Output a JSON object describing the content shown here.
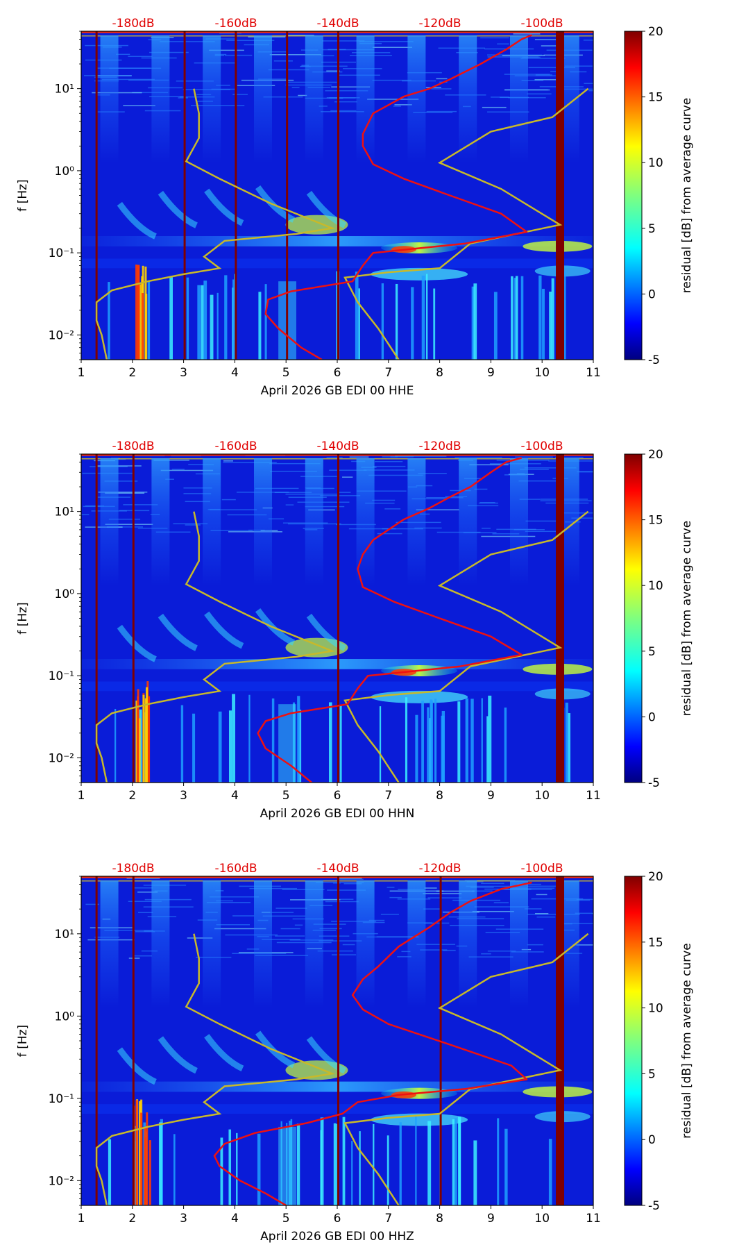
{
  "chart_data": [
    {
      "type": "heatmap",
      "component": "HHE",
      "xlabel": "April 2026 GB EDI 00 HHE",
      "ylabel": "f [Hz]",
      "xlim": [
        1,
        11
      ],
      "ylim": [
        0.005,
        50
      ],
      "yscale": "log",
      "x_ticks": [
        1,
        2,
        3,
        4,
        5,
        6,
        7,
        8,
        9,
        10,
        11
      ],
      "y_ticks": [
        {
          "value": 0.01,
          "label": "10⁻²"
        },
        {
          "value": 0.1,
          "label": "10⁻¹"
        },
        {
          "value": 1,
          "label": "10⁰"
        },
        {
          "value": 10,
          "label": "10¹"
        }
      ],
      "top_db_labels": [
        "-180dB",
        "-160dB",
        "-140dB",
        "-120dB",
        "-100dB"
      ],
      "colorbar": {
        "label": "residual [dB] from average curve",
        "range": [
          -5,
          20
        ],
        "ticks": [
          -5,
          0,
          5,
          10,
          15,
          20
        ]
      },
      "gap_days": [
        1.3,
        3.02,
        4.02,
        5.02,
        6.02,
        10.35
      ],
      "red_curve": [
        [
          5.7,
          0.005
        ],
        [
          5.3,
          0.007
        ],
        [
          4.85,
          0.012
        ],
        [
          4.6,
          0.018
        ],
        [
          4.65,
          0.027
        ],
        [
          5.1,
          0.034
        ],
        [
          6.3,
          0.045
        ],
        [
          6.5,
          0.07
        ],
        [
          6.7,
          0.1
        ],
        [
          8.5,
          0.13
        ],
        [
          9.7,
          0.18
        ],
        [
          9.2,
          0.3
        ],
        [
          8.2,
          0.5
        ],
        [
          7.3,
          0.8
        ],
        [
          6.7,
          1.2
        ],
        [
          6.5,
          2
        ],
        [
          6.5,
          2.8
        ],
        [
          6.7,
          5
        ],
        [
          7.3,
          8
        ],
        [
          7.8,
          10
        ],
        [
          8.2,
          13
        ],
        [
          8.8,
          20
        ],
        [
          9.3,
          30
        ],
        [
          9.6,
          40
        ],
        [
          9.8,
          45
        ]
      ],
      "yellow_curves": [
        [
          [
            1.5,
            0.005
          ],
          [
            1.4,
            0.01
          ],
          [
            1.3,
            0.015
          ],
          [
            1.3,
            0.025
          ],
          [
            1.6,
            0.035
          ],
          [
            2.3,
            0.045
          ],
          [
            3.0,
            0.055
          ],
          [
            3.7,
            0.065
          ],
          [
            3.4,
            0.09
          ],
          [
            3.8,
            0.14
          ],
          [
            5.2,
            0.17
          ],
          [
            5.9,
            0.2
          ],
          [
            4.7,
            0.4
          ],
          [
            3.7,
            0.8
          ],
          [
            3.05,
            1.3
          ],
          [
            3.3,
            2.5
          ],
          [
            3.3,
            5
          ],
          [
            3.2,
            10
          ]
        ],
        [
          [
            7.2,
            0.005
          ],
          [
            6.8,
            0.012
          ],
          [
            6.4,
            0.025
          ],
          [
            6.15,
            0.05
          ],
          [
            7.0,
            0.058
          ],
          [
            8.0,
            0.065
          ],
          [
            8.6,
            0.13
          ],
          [
            10.35,
            0.22
          ],
          [
            9.2,
            0.6
          ],
          [
            8.0,
            1.25
          ],
          [
            9.0,
            3.0
          ],
          [
            10.2,
            4.5
          ],
          [
            10.9,
            10
          ]
        ]
      ]
    },
    {
      "type": "heatmap",
      "component": "HHN",
      "xlabel": "April 2026 GB EDI 00 HHN",
      "ylabel": "f [Hz]",
      "xlim": [
        1,
        11
      ],
      "ylim": [
        0.005,
        50
      ],
      "yscale": "log",
      "x_ticks": [
        1,
        2,
        3,
        4,
        5,
        6,
        7,
        8,
        9,
        10,
        11
      ],
      "y_ticks": [
        {
          "value": 0.01,
          "label": "10⁻²"
        },
        {
          "value": 0.1,
          "label": "10⁻¹"
        },
        {
          "value": 1,
          "label": "10⁰"
        },
        {
          "value": 10,
          "label": "10¹"
        }
      ],
      "top_db_labels": [
        "-180dB",
        "-160dB",
        "-140dB",
        "-120dB",
        "-100dB"
      ],
      "colorbar": {
        "label": "residual [dB] from average curve",
        "range": [
          -5,
          20
        ],
        "ticks": [
          -5,
          0,
          5,
          10,
          15,
          20
        ]
      },
      "gap_days": [
        1.3,
        2.02,
        6.02,
        10.35
      ],
      "red_curve": [
        [
          5.5,
          0.005
        ],
        [
          5.1,
          0.008
        ],
        [
          4.6,
          0.013
        ],
        [
          4.45,
          0.02
        ],
        [
          4.6,
          0.028
        ],
        [
          5.1,
          0.035
        ],
        [
          6.2,
          0.045
        ],
        [
          6.4,
          0.07
        ],
        [
          6.6,
          0.1
        ],
        [
          8.4,
          0.13
        ],
        [
          9.6,
          0.18
        ],
        [
          9.0,
          0.3
        ],
        [
          8.0,
          0.5
        ],
        [
          7.1,
          0.8
        ],
        [
          6.5,
          1.2
        ],
        [
          6.4,
          2
        ],
        [
          6.5,
          3
        ],
        [
          6.7,
          4.5
        ],
        [
          7.3,
          8
        ],
        [
          7.8,
          11
        ],
        [
          8.2,
          15
        ],
        [
          8.6,
          20
        ],
        [
          9.0,
          30
        ],
        [
          9.3,
          40
        ],
        [
          9.6,
          45
        ]
      ],
      "yellow_curves": [
        [
          [
            1.5,
            0.005
          ],
          [
            1.4,
            0.01
          ],
          [
            1.3,
            0.015
          ],
          [
            1.3,
            0.025
          ],
          [
            1.6,
            0.035
          ],
          [
            2.3,
            0.045
          ],
          [
            3.0,
            0.055
          ],
          [
            3.7,
            0.065
          ],
          [
            3.4,
            0.09
          ],
          [
            3.8,
            0.14
          ],
          [
            5.2,
            0.17
          ],
          [
            5.9,
            0.2
          ],
          [
            4.7,
            0.4
          ],
          [
            3.7,
            0.8
          ],
          [
            3.05,
            1.3
          ],
          [
            3.3,
            2.5
          ],
          [
            3.3,
            5
          ],
          [
            3.2,
            10
          ]
        ],
        [
          [
            7.2,
            0.005
          ],
          [
            6.8,
            0.012
          ],
          [
            6.4,
            0.025
          ],
          [
            6.15,
            0.05
          ],
          [
            7.0,
            0.058
          ],
          [
            8.0,
            0.065
          ],
          [
            8.6,
            0.13
          ],
          [
            10.35,
            0.22
          ],
          [
            9.2,
            0.6
          ],
          [
            8.0,
            1.25
          ],
          [
            9.0,
            3.0
          ],
          [
            10.2,
            4.5
          ],
          [
            10.9,
            10
          ]
        ]
      ]
    },
    {
      "type": "heatmap",
      "component": "HHZ",
      "xlabel": "April 2026 GB EDI 00 HHZ",
      "ylabel": "f [Hz]",
      "xlim": [
        1,
        11
      ],
      "ylim": [
        0.005,
        50
      ],
      "yscale": "log",
      "x_ticks": [
        1,
        2,
        3,
        4,
        5,
        6,
        7,
        8,
        9,
        10,
        11
      ],
      "y_ticks": [
        {
          "value": 0.01,
          "label": "10⁻²"
        },
        {
          "value": 0.1,
          "label": "10⁻¹"
        },
        {
          "value": 1,
          "label": "10⁰"
        },
        {
          "value": 10,
          "label": "10¹"
        }
      ],
      "top_db_labels": [
        "-180dB",
        "-160dB",
        "-140dB",
        "-120dB",
        "-100dB"
      ],
      "colorbar": {
        "label": "residual [dB] from average curve",
        "range": [
          -5,
          20
        ],
        "ticks": [
          -5,
          0,
          5,
          10,
          15,
          20
        ]
      },
      "gap_days": [
        1.3,
        2.02,
        6.02,
        8.02,
        10.35
      ],
      "red_curve": [
        [
          5.0,
          0.005
        ],
        [
          4.6,
          0.007
        ],
        [
          4.1,
          0.01
        ],
        [
          3.7,
          0.015
        ],
        [
          3.6,
          0.02
        ],
        [
          3.8,
          0.028
        ],
        [
          4.4,
          0.038
        ],
        [
          5.4,
          0.05
        ],
        [
          6.1,
          0.065
        ],
        [
          6.4,
          0.09
        ],
        [
          7.2,
          0.11
        ],
        [
          8.5,
          0.13
        ],
        [
          9.7,
          0.17
        ],
        [
          9.4,
          0.25
        ],
        [
          8.2,
          0.45
        ],
        [
          7.0,
          0.8
        ],
        [
          6.5,
          1.2
        ],
        [
          6.3,
          1.8
        ],
        [
          6.5,
          2.8
        ],
        [
          6.8,
          4
        ],
        [
          7.2,
          7
        ],
        [
          7.8,
          12
        ],
        [
          8.2,
          18
        ],
        [
          8.6,
          25
        ],
        [
          9.2,
          35
        ],
        [
          9.8,
          42
        ]
      ],
      "yellow_curves": [
        [
          [
            1.5,
            0.005
          ],
          [
            1.4,
            0.01
          ],
          [
            1.3,
            0.015
          ],
          [
            1.3,
            0.025
          ],
          [
            1.6,
            0.035
          ],
          [
            2.3,
            0.045
          ],
          [
            3.0,
            0.055
          ],
          [
            3.7,
            0.065
          ],
          [
            3.4,
            0.09
          ],
          [
            3.8,
            0.14
          ],
          [
            5.2,
            0.17
          ],
          [
            5.9,
            0.2
          ],
          [
            4.7,
            0.4
          ],
          [
            3.7,
            0.8
          ],
          [
            3.05,
            1.3
          ],
          [
            3.3,
            2.5
          ],
          [
            3.3,
            5
          ],
          [
            3.2,
            10
          ]
        ],
        [
          [
            7.2,
            0.005
          ],
          [
            6.8,
            0.012
          ],
          [
            6.4,
            0.025
          ],
          [
            6.15,
            0.05
          ],
          [
            7.0,
            0.058
          ],
          [
            8.0,
            0.065
          ],
          [
            8.6,
            0.13
          ],
          [
            10.35,
            0.22
          ],
          [
            9.2,
            0.6
          ],
          [
            8.0,
            1.25
          ],
          [
            9.0,
            3.0
          ],
          [
            10.2,
            4.5
          ],
          [
            10.9,
            10
          ]
        ]
      ]
    }
  ]
}
